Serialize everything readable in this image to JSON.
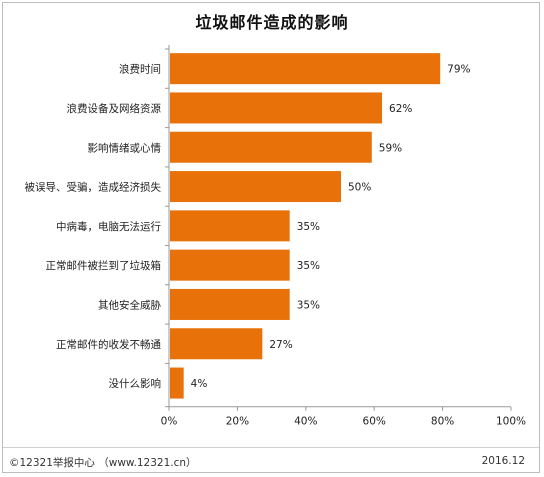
{
  "chart_data": {
    "type": "bar",
    "orientation": "horizontal",
    "title": "垃圾邮件造成的影响",
    "categories": [
      "浪费时间",
      "浪费设备及网络资源",
      "影响情绪或心情",
      "被误导、受骗，造成经济损失",
      "中病毒，电脑无法运行",
      "正常邮件被拦到了垃圾箱",
      "其他安全威胁",
      "正常邮件的收发不畅通",
      "没什么影响"
    ],
    "values": [
      79,
      62,
      59,
      50,
      35,
      35,
      35,
      27,
      4
    ],
    "value_labels": [
      "79%",
      "62%",
      "59%",
      "50%",
      "35%",
      "35%",
      "35%",
      "27%",
      "4%"
    ],
    "xlim": [
      0,
      100
    ],
    "x_ticks": [
      "0%",
      "20%",
      "40%",
      "60%",
      "80%",
      "100%"
    ],
    "bar_color": "#E8710A",
    "grid": false
  },
  "footer": {
    "source": "©12321举报中心 （www.12321.cn）",
    "date": "2016.12"
  }
}
